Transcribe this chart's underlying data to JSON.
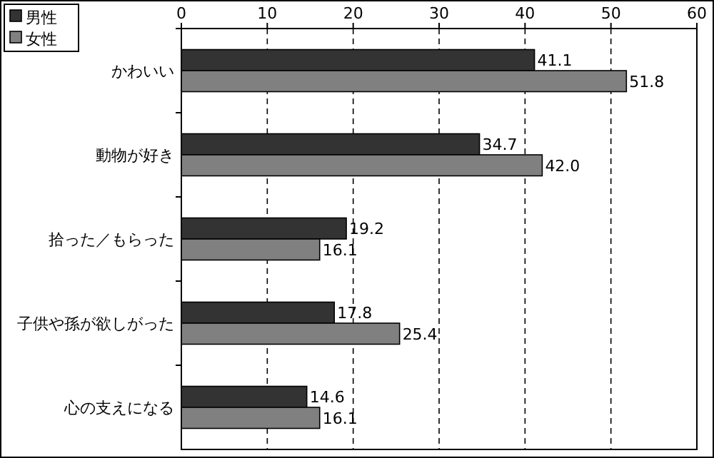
{
  "chart_data": {
    "type": "bar",
    "orientation": "horizontal",
    "categories": [
      "かわいい",
      "動物が好き",
      "拾った／もらった",
      "子供や孫が欲しがった",
      "心の支えになる"
    ],
    "series": [
      {
        "name": "男性",
        "color": "#333333",
        "values": [
          41.1,
          34.7,
          19.2,
          17.8,
          14.6
        ],
        "value_labels": [
          "41.1",
          "34.7",
          "19.2",
          "17.8",
          "14.6"
        ]
      },
      {
        "name": "女性",
        "color": "#808080",
        "values": [
          51.8,
          42.0,
          16.1,
          25.4,
          16.1
        ],
        "value_labels": [
          "51.8",
          "42.0",
          "16.1",
          "25.4",
          "16.1"
        ]
      }
    ],
    "xlim": [
      0,
      60
    ],
    "xticks": [
      0,
      10,
      20,
      30,
      40,
      50,
      60
    ],
    "grid": "x",
    "legend": "top left"
  }
}
